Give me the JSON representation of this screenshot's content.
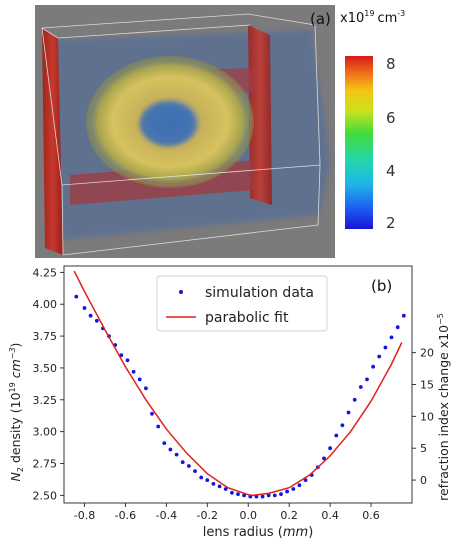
{
  "panel_a": {
    "label": "(a)",
    "unit_prefix": "x10",
    "unit_exp": "19",
    "unit_suffix": "cm",
    "unit_suffix_exp": "-3",
    "colorbar_ticks": [
      "8",
      "6",
      "4",
      "2"
    ],
    "colors": {
      "background": "#7d7d7d",
      "wall": "#b8302a",
      "low": "#1d35e6",
      "high": "#d7281d"
    }
  },
  "chart_data": {
    "type": "scatter",
    "panel_label": "(b)",
    "xlabel_text": "lens radius (",
    "xlabel_unit": "mm",
    "xlabel_close": ")",
    "ylabel_n": "N",
    "ylabel_sub": "2",
    "ylabel_rest": " density (10",
    "ylabel_exp": "19",
    "ylabel_unit": " cm",
    "ylabel_unit_exp": "−3",
    "ylabel_close": ")",
    "y2label_text": "refraction index change x10",
    "y2label_exp": "−5",
    "xlim": [
      -0.9,
      0.8
    ],
    "ylim": [
      2.44,
      4.3
    ],
    "y2lim_note": "right axis linear with left",
    "x_ticks": [
      "-0.8",
      "-0.6",
      "-0.4",
      "-0.2",
      "0.0",
      "0.2",
      "0.4",
      "0.6"
    ],
    "y_ticks": [
      "2.50",
      "2.75",
      "3.00",
      "3.25",
      "3.50",
      "3.75",
      "4.00",
      "4.25"
    ],
    "y2_ticks": [
      "0",
      "5",
      "10",
      "15",
      "20"
    ],
    "legend": {
      "position": "top-center",
      "items": [
        "simulation data",
        "parabolic fit"
      ]
    },
    "series": [
      {
        "name": "simulation data",
        "style": "points",
        "color": "#1515e0",
        "x": [
          -0.84,
          -0.8,
          -0.77,
          -0.74,
          -0.71,
          -0.68,
          -0.65,
          -0.62,
          -0.59,
          -0.56,
          -0.53,
          -0.5,
          -0.47,
          -0.44,
          -0.41,
          -0.38,
          -0.35,
          -0.32,
          -0.29,
          -0.26,
          -0.23,
          -0.2,
          -0.17,
          -0.14,
          -0.11,
          -0.08,
          -0.05,
          -0.02,
          0.01,
          0.04,
          0.07,
          0.1,
          0.13,
          0.16,
          0.19,
          0.22,
          0.25,
          0.28,
          0.31,
          0.34,
          0.37,
          0.4,
          0.43,
          0.46,
          0.49,
          0.52,
          0.55,
          0.58,
          0.61,
          0.64,
          0.67,
          0.7,
          0.73,
          0.76
        ],
        "y": [
          4.06,
          3.97,
          3.91,
          3.87,
          3.81,
          3.75,
          3.68,
          3.6,
          3.56,
          3.47,
          3.41,
          3.34,
          3.14,
          3.04,
          2.91,
          2.86,
          2.82,
          2.76,
          2.73,
          2.69,
          2.64,
          2.62,
          2.59,
          2.57,
          2.55,
          2.52,
          2.51,
          2.5,
          2.49,
          2.49,
          2.49,
          2.5,
          2.5,
          2.51,
          2.53,
          2.55,
          2.58,
          2.62,
          2.66,
          2.72,
          2.79,
          2.87,
          2.97,
          3.05,
          3.15,
          3.25,
          3.35,
          3.41,
          3.51,
          3.59,
          3.66,
          3.74,
          3.82,
          3.91
        ]
      },
      {
        "name": "parabolic fit",
        "style": "line",
        "color": "#e0201a",
        "x": [
          -0.85,
          -0.8,
          -0.7,
          -0.6,
          -0.5,
          -0.4,
          -0.3,
          -0.2,
          -0.1,
          0.0,
          0.02,
          0.1,
          0.2,
          0.3,
          0.4,
          0.5,
          0.6,
          0.7,
          0.75
        ],
        "y": [
          4.26,
          4.1,
          3.8,
          3.51,
          3.25,
          3.02,
          2.83,
          2.67,
          2.56,
          2.505,
          2.5,
          2.515,
          2.56,
          2.66,
          2.81,
          3.0,
          3.24,
          3.53,
          3.7
        ]
      }
    ]
  }
}
